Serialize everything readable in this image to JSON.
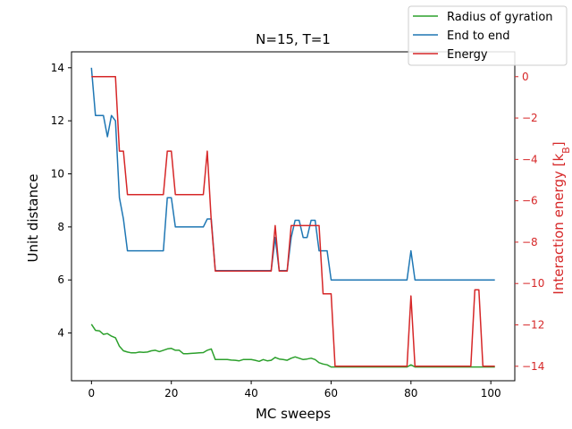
{
  "chart_data": {
    "type": "line",
    "title": "N=15, T=1",
    "xlabel": "MC sweeps",
    "ylabel_left": "Unit distance",
    "ylabel_right": "Interaction energy [k_B]",
    "xlim": [
      -5,
      106
    ],
    "ylim_left": [
      2.2,
      14.6
    ],
    "ylim_right": [
      -14.7,
      1.2
    ],
    "grid": false,
    "legend_placement": "top-right",
    "x_ticks": [
      0,
      20,
      40,
      60,
      80,
      100
    ],
    "y_left_ticks": [
      4,
      6,
      8,
      10,
      12,
      14
    ],
    "y_right_ticks": [
      0,
      -2,
      -4,
      -6,
      -8,
      -10,
      -12,
      -14
    ],
    "right_axis_color": "#d62728",
    "series": [
      {
        "name": "Radius of gyration",
        "axis": "left",
        "color": "#2ca02c",
        "x": [
          0,
          1,
          2,
          3,
          4,
          5,
          6,
          7,
          8,
          9,
          10,
          11,
          12,
          13,
          14,
          15,
          16,
          17,
          18,
          19,
          20,
          21,
          22,
          23,
          24,
          25,
          26,
          27,
          28,
          29,
          30,
          31,
          32,
          33,
          34,
          35,
          36,
          37,
          38,
          39,
          40,
          41,
          42,
          43,
          44,
          45,
          46,
          47,
          48,
          49,
          50,
          51,
          52,
          53,
          54,
          55,
          56,
          57,
          58,
          59,
          60,
          61,
          62,
          63,
          64,
          65,
          66,
          67,
          68,
          69,
          70,
          71,
          72,
          73,
          74,
          75,
          76,
          77,
          78,
          79,
          80,
          81,
          82,
          83,
          84,
          85,
          86,
          87,
          88,
          89,
          90,
          91,
          92,
          93,
          94,
          95,
          96,
          97,
          98,
          99,
          100,
          101
        ],
        "y": [
          4.33,
          4.1,
          4.08,
          3.95,
          3.98,
          3.88,
          3.82,
          3.5,
          3.33,
          3.28,
          3.25,
          3.25,
          3.28,
          3.27,
          3.28,
          3.33,
          3.35,
          3.3,
          3.35,
          3.4,
          3.42,
          3.35,
          3.35,
          3.22,
          3.22,
          3.23,
          3.24,
          3.25,
          3.26,
          3.35,
          3.4,
          3.0,
          3.0,
          3.0,
          3.0,
          2.98,
          2.97,
          2.95,
          3.0,
          3.0,
          3.0,
          2.97,
          2.93,
          3.0,
          2.95,
          2.97,
          3.08,
          3.02,
          3.0,
          2.97,
          3.05,
          3.1,
          3.05,
          3.0,
          3.02,
          3.05,
          3.0,
          2.88,
          2.83,
          2.8,
          2.72,
          2.72,
          2.72,
          2.72,
          2.72,
          2.72,
          2.72,
          2.72,
          2.72,
          2.72,
          2.72,
          2.72,
          2.72,
          2.72,
          2.72,
          2.72,
          2.72,
          2.72,
          2.72,
          2.72,
          2.8,
          2.72,
          2.72,
          2.72,
          2.72,
          2.72,
          2.72,
          2.72,
          2.72,
          2.72,
          2.72,
          2.72,
          2.72,
          2.72,
          2.72,
          2.72,
          2.72,
          2.72,
          2.72,
          2.72,
          2.72,
          2.72
        ]
      },
      {
        "name": "End to end",
        "axis": "left",
        "color": "#1f77b4",
        "x": [
          0,
          1,
          2,
          3,
          4,
          5,
          6,
          7,
          8,
          9,
          10,
          11,
          12,
          13,
          14,
          15,
          16,
          17,
          18,
          19,
          20,
          21,
          22,
          23,
          24,
          25,
          26,
          27,
          28,
          29,
          30,
          31,
          32,
          33,
          34,
          35,
          36,
          37,
          38,
          39,
          40,
          41,
          42,
          43,
          44,
          45,
          46,
          47,
          48,
          49,
          50,
          51,
          52,
          53,
          54,
          55,
          56,
          57,
          58,
          59,
          60,
          61,
          62,
          63,
          64,
          65,
          66,
          67,
          68,
          69,
          70,
          71,
          72,
          73,
          74,
          75,
          76,
          77,
          78,
          79,
          80,
          81,
          82,
          83,
          84,
          85,
          86,
          87,
          88,
          89,
          90,
          91,
          92,
          93,
          94,
          95,
          96,
          97,
          98,
          99,
          100,
          101
        ],
        "y": [
          14.0,
          12.2,
          12.2,
          12.2,
          11.4,
          12.2,
          12.0,
          9.1,
          8.3,
          7.1,
          7.1,
          7.1,
          7.1,
          7.1,
          7.1,
          7.1,
          7.1,
          7.1,
          7.1,
          9.1,
          9.1,
          8.0,
          8.0,
          8.0,
          8.0,
          8.0,
          8.0,
          8.0,
          8.0,
          8.3,
          8.3,
          6.35,
          6.35,
          6.35,
          6.35,
          6.35,
          6.35,
          6.35,
          6.35,
          6.35,
          6.35,
          6.35,
          6.35,
          6.35,
          6.35,
          6.35,
          7.6,
          6.35,
          6.35,
          6.35,
          7.6,
          8.25,
          8.25,
          7.6,
          7.6,
          8.25,
          8.25,
          7.1,
          7.1,
          7.1,
          6.0,
          6.0,
          6.0,
          6.0,
          6.0,
          6.0,
          6.0,
          6.0,
          6.0,
          6.0,
          6.0,
          6.0,
          6.0,
          6.0,
          6.0,
          6.0,
          6.0,
          6.0,
          6.0,
          6.0,
          7.1,
          6.0,
          6.0,
          6.0,
          6.0,
          6.0,
          6.0,
          6.0,
          6.0,
          6.0,
          6.0,
          6.0,
          6.0,
          6.0,
          6.0,
          6.0,
          6.0,
          6.0,
          6.0,
          6.0,
          6.0,
          6.0
        ]
      },
      {
        "name": "Energy",
        "axis": "right",
        "color": "#d62728",
        "x": [
          0,
          1,
          2,
          3,
          4,
          5,
          6,
          7,
          8,
          9,
          10,
          11,
          12,
          13,
          14,
          15,
          16,
          17,
          18,
          19,
          20,
          21,
          22,
          23,
          24,
          25,
          26,
          27,
          28,
          29,
          30,
          31,
          32,
          33,
          34,
          35,
          36,
          37,
          38,
          39,
          40,
          41,
          42,
          43,
          44,
          45,
          46,
          47,
          48,
          49,
          50,
          51,
          52,
          53,
          54,
          55,
          56,
          57,
          58,
          59,
          60,
          61,
          62,
          63,
          64,
          65,
          66,
          67,
          68,
          69,
          70,
          71,
          72,
          73,
          74,
          75,
          76,
          77,
          78,
          79,
          80,
          81,
          82,
          83,
          84,
          85,
          86,
          87,
          88,
          89,
          90,
          91,
          92,
          93,
          94,
          95,
          96,
          97,
          98,
          99,
          100,
          101
        ],
        "y": [
          0,
          0,
          0,
          0,
          0,
          0,
          0,
          -3.6,
          -3.6,
          -5.7,
          -5.7,
          -5.7,
          -5.7,
          -5.7,
          -5.7,
          -5.7,
          -5.7,
          -5.7,
          -5.7,
          -3.6,
          -3.6,
          -5.7,
          -5.7,
          -5.7,
          -5.7,
          -5.7,
          -5.7,
          -5.7,
          -5.7,
          -3.6,
          -7.0,
          -9.4,
          -9.4,
          -9.4,
          -9.4,
          -9.4,
          -9.4,
          -9.4,
          -9.4,
          -9.4,
          -9.4,
          -9.4,
          -9.4,
          -9.4,
          -9.4,
          -9.4,
          -7.2,
          -9.4,
          -9.4,
          -9.4,
          -7.2,
          -7.2,
          -7.2,
          -7.2,
          -7.2,
          -7.2,
          -7.2,
          -7.2,
          -10.5,
          -10.5,
          -10.5,
          -14.0,
          -14.0,
          -14.0,
          -14.0,
          -14.0,
          -14.0,
          -14.0,
          -14.0,
          -14.0,
          -14.0,
          -14.0,
          -14.0,
          -14.0,
          -14.0,
          -14.0,
          -14.0,
          -14.0,
          -14.0,
          -14.0,
          -10.6,
          -14.0,
          -14.0,
          -14.0,
          -14.0,
          -14.0,
          -14.0,
          -14.0,
          -14.0,
          -14.0,
          -14.0,
          -14.0,
          -14.0,
          -14.0,
          -14.0,
          -14.0,
          -10.3,
          -10.3,
          -14.0,
          -14.0,
          -14.0,
          -14.0
        ]
      }
    ]
  }
}
